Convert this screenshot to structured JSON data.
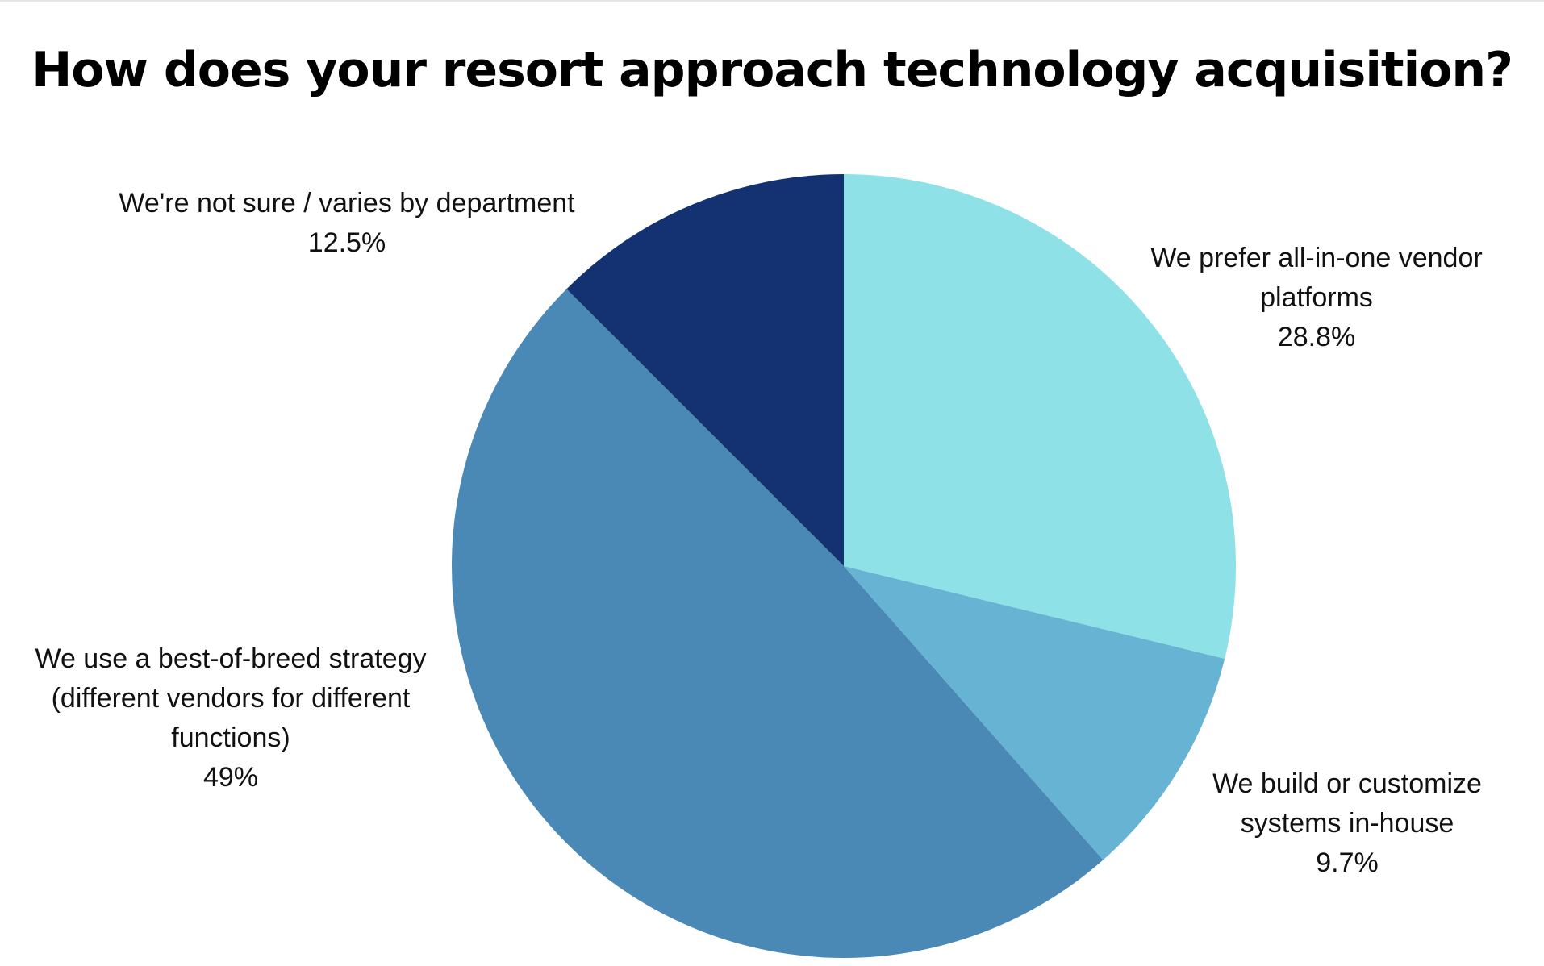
{
  "chart_data": {
    "type": "pie",
    "title": "How does your resort approach technology acquisition?",
    "slices": [
      {
        "label_lines": [
          "We prefer all-in-one vendor",
          "platforms"
        ],
        "value": 28.8,
        "value_label": "28.8%",
        "color": "#8EE1E6"
      },
      {
        "label_lines": [
          "We build or customize",
          "systems in-house"
        ],
        "value": 9.7,
        "value_label": "9.7%",
        "color": "#66B3D3"
      },
      {
        "label_lines": [
          "We use a best-of-breed strategy",
          "(different vendors for different",
          "functions)"
        ],
        "value": 49,
        "value_label": "49%",
        "color": "#4A89B5"
      },
      {
        "label_lines": [
          "We're not sure / varies by department"
        ],
        "value": 12.5,
        "value_label": "12.5%",
        "color": "#143272"
      }
    ],
    "start_angle": "12 o'clock",
    "direction": "clockwise",
    "legend": "none"
  }
}
